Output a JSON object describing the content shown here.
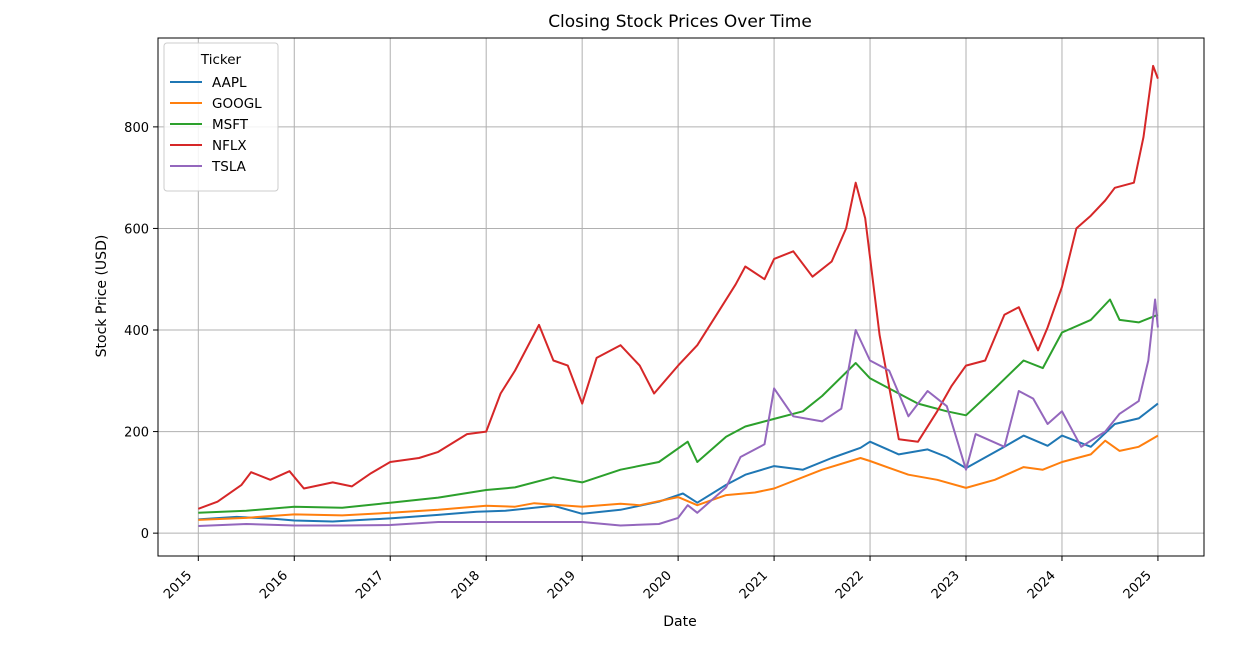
{
  "chart_data": {
    "type": "line",
    "title": "Closing Stock Prices Over Time",
    "xlabel": "Date",
    "ylabel": "Stock Price (USD)",
    "xlim": [
      2014.58,
      2025.48
    ],
    "ylim": [
      -45,
      975
    ],
    "grid": true,
    "x_ticks": [
      2015,
      2016,
      2017,
      2018,
      2019,
      2020,
      2021,
      2022,
      2023,
      2024,
      2025
    ],
    "x_tick_labels": [
      "2015",
      "2016",
      "2017",
      "2018",
      "2019",
      "2020",
      "2021",
      "2022",
      "2023",
      "2024",
      "2025"
    ],
    "y_ticks": [
      0,
      200,
      400,
      600,
      800
    ],
    "y_tick_labels": [
      "0",
      "200",
      "400",
      "600",
      "800"
    ],
    "legend": {
      "title": "Ticker",
      "position": "top-left"
    },
    "series": [
      {
        "name": "AAPL",
        "color": "#1f77b4",
        "points": [
          [
            2015.0,
            27
          ],
          [
            2015.4,
            32
          ],
          [
            2015.8,
            28
          ],
          [
            2016.0,
            25
          ],
          [
            2016.4,
            23
          ],
          [
            2016.8,
            27
          ],
          [
            2017.0,
            29
          ],
          [
            2017.5,
            36
          ],
          [
            2017.9,
            42
          ],
          [
            2018.2,
            44
          ],
          [
            2018.7,
            54
          ],
          [
            2019.0,
            38
          ],
          [
            2019.4,
            46
          ],
          [
            2019.8,
            62
          ],
          [
            2020.05,
            78
          ],
          [
            2020.2,
            60
          ],
          [
            2020.5,
            95
          ],
          [
            2020.7,
            115
          ],
          [
            2021.0,
            132
          ],
          [
            2021.3,
            125
          ],
          [
            2021.6,
            148
          ],
          [
            2021.9,
            168
          ],
          [
            2022.0,
            180
          ],
          [
            2022.3,
            155
          ],
          [
            2022.6,
            165
          ],
          [
            2022.8,
            150
          ],
          [
            2023.0,
            128
          ],
          [
            2023.4,
            170
          ],
          [
            2023.6,
            192
          ],
          [
            2023.85,
            172
          ],
          [
            2024.0,
            192
          ],
          [
            2024.3,
            170
          ],
          [
            2024.55,
            215
          ],
          [
            2024.8,
            226
          ],
          [
            2025.0,
            255
          ]
        ]
      },
      {
        "name": "GOOGL",
        "color": "#ff7f0e",
        "points": [
          [
            2015.0,
            26
          ],
          [
            2015.5,
            30
          ],
          [
            2015.7,
            33
          ],
          [
            2016.0,
            37
          ],
          [
            2016.5,
            35
          ],
          [
            2017.0,
            40
          ],
          [
            2017.5,
            46
          ],
          [
            2018.0,
            54
          ],
          [
            2018.3,
            52
          ],
          [
            2018.5,
            59
          ],
          [
            2019.0,
            52
          ],
          [
            2019.4,
            58
          ],
          [
            2019.6,
            55
          ],
          [
            2020.0,
            71
          ],
          [
            2020.2,
            55
          ],
          [
            2020.5,
            75
          ],
          [
            2020.8,
            80
          ],
          [
            2021.0,
            88
          ],
          [
            2021.5,
            125
          ],
          [
            2021.9,
            148
          ],
          [
            2022.0,
            142
          ],
          [
            2022.4,
            115
          ],
          [
            2022.7,
            105
          ],
          [
            2023.0,
            89
          ],
          [
            2023.3,
            105
          ],
          [
            2023.6,
            130
          ],
          [
            2023.8,
            125
          ],
          [
            2024.0,
            140
          ],
          [
            2024.3,
            155
          ],
          [
            2024.45,
            182
          ],
          [
            2024.6,
            162
          ],
          [
            2024.8,
            170
          ],
          [
            2025.0,
            192
          ]
        ]
      },
      {
        "name": "MSFT",
        "color": "#2ca02c",
        "points": [
          [
            2015.0,
            40
          ],
          [
            2015.5,
            44
          ],
          [
            2016.0,
            52
          ],
          [
            2016.5,
            50
          ],
          [
            2017.0,
            60
          ],
          [
            2017.5,
            70
          ],
          [
            2018.0,
            85
          ],
          [
            2018.3,
            90
          ],
          [
            2018.7,
            110
          ],
          [
            2019.0,
            100
          ],
          [
            2019.4,
            125
          ],
          [
            2019.8,
            140
          ],
          [
            2020.1,
            180
          ],
          [
            2020.2,
            140
          ],
          [
            2020.5,
            190
          ],
          [
            2020.7,
            210
          ],
          [
            2021.0,
            225
          ],
          [
            2021.3,
            240
          ],
          [
            2021.5,
            270
          ],
          [
            2021.85,
            335
          ],
          [
            2022.0,
            305
          ],
          [
            2022.3,
            275
          ],
          [
            2022.5,
            255
          ],
          [
            2022.8,
            240
          ],
          [
            2023.0,
            232
          ],
          [
            2023.3,
            285
          ],
          [
            2023.6,
            340
          ],
          [
            2023.8,
            325
          ],
          [
            2024.0,
            395
          ],
          [
            2024.3,
            420
          ],
          [
            2024.5,
            460
          ],
          [
            2024.6,
            420
          ],
          [
            2024.8,
            415
          ],
          [
            2025.0,
            430
          ]
        ]
      },
      {
        "name": "NFLX",
        "color": "#d62728",
        "points": [
          [
            2015.0,
            48
          ],
          [
            2015.2,
            62
          ],
          [
            2015.45,
            95
          ],
          [
            2015.55,
            120
          ],
          [
            2015.75,
            105
          ],
          [
            2015.95,
            122
          ],
          [
            2016.1,
            88
          ],
          [
            2016.4,
            100
          ],
          [
            2016.6,
            92
          ],
          [
            2016.8,
            118
          ],
          [
            2017.0,
            140
          ],
          [
            2017.3,
            148
          ],
          [
            2017.5,
            160
          ],
          [
            2017.8,
            195
          ],
          [
            2018.0,
            200
          ],
          [
            2018.15,
            275
          ],
          [
            2018.3,
            320
          ],
          [
            2018.55,
            410
          ],
          [
            2018.7,
            340
          ],
          [
            2018.85,
            330
          ],
          [
            2019.0,
            255
          ],
          [
            2019.15,
            345
          ],
          [
            2019.4,
            370
          ],
          [
            2019.6,
            330
          ],
          [
            2019.75,
            275
          ],
          [
            2020.0,
            330
          ],
          [
            2020.2,
            370
          ],
          [
            2020.4,
            430
          ],
          [
            2020.6,
            490
          ],
          [
            2020.7,
            525
          ],
          [
            2020.9,
            500
          ],
          [
            2021.0,
            540
          ],
          [
            2021.2,
            555
          ],
          [
            2021.4,
            505
          ],
          [
            2021.6,
            535
          ],
          [
            2021.75,
            600
          ],
          [
            2021.85,
            690
          ],
          [
            2021.95,
            620
          ],
          [
            2022.1,
            390
          ],
          [
            2022.3,
            185
          ],
          [
            2022.5,
            180
          ],
          [
            2022.7,
            240
          ],
          [
            2022.85,
            290
          ],
          [
            2023.0,
            330
          ],
          [
            2023.2,
            340
          ],
          [
            2023.4,
            430
          ],
          [
            2023.55,
            445
          ],
          [
            2023.75,
            360
          ],
          [
            2023.85,
            405
          ],
          [
            2024.0,
            485
          ],
          [
            2024.15,
            600
          ],
          [
            2024.3,
            625
          ],
          [
            2024.45,
            655
          ],
          [
            2024.55,
            680
          ],
          [
            2024.75,
            690
          ],
          [
            2024.85,
            780
          ],
          [
            2024.95,
            920
          ],
          [
            2025.0,
            895
          ]
        ]
      },
      {
        "name": "TSLA",
        "color": "#9467bd",
        "points": [
          [
            2015.0,
            14
          ],
          [
            2015.5,
            18
          ],
          [
            2016.0,
            15
          ],
          [
            2016.5,
            15
          ],
          [
            2017.0,
            16
          ],
          [
            2017.5,
            22
          ],
          [
            2018.0,
            22
          ],
          [
            2018.5,
            22
          ],
          [
            2019.0,
            22
          ],
          [
            2019.4,
            15
          ],
          [
            2019.8,
            18
          ],
          [
            2020.0,
            30
          ],
          [
            2020.1,
            55
          ],
          [
            2020.2,
            40
          ],
          [
            2020.5,
            90
          ],
          [
            2020.65,
            150
          ],
          [
            2020.9,
            175
          ],
          [
            2021.0,
            285
          ],
          [
            2021.2,
            230
          ],
          [
            2021.5,
            220
          ],
          [
            2021.7,
            245
          ],
          [
            2021.85,
            400
          ],
          [
            2022.0,
            340
          ],
          [
            2022.2,
            320
          ],
          [
            2022.4,
            230
          ],
          [
            2022.6,
            280
          ],
          [
            2022.8,
            250
          ],
          [
            2023.0,
            125
          ],
          [
            2023.1,
            195
          ],
          [
            2023.4,
            170
          ],
          [
            2023.55,
            280
          ],
          [
            2023.7,
            265
          ],
          [
            2023.85,
            215
          ],
          [
            2024.0,
            240
          ],
          [
            2024.2,
            170
          ],
          [
            2024.45,
            200
          ],
          [
            2024.6,
            235
          ],
          [
            2024.8,
            260
          ],
          [
            2024.9,
            340
          ],
          [
            2024.97,
            460
          ],
          [
            2025.0,
            405
          ]
        ]
      }
    ]
  }
}
